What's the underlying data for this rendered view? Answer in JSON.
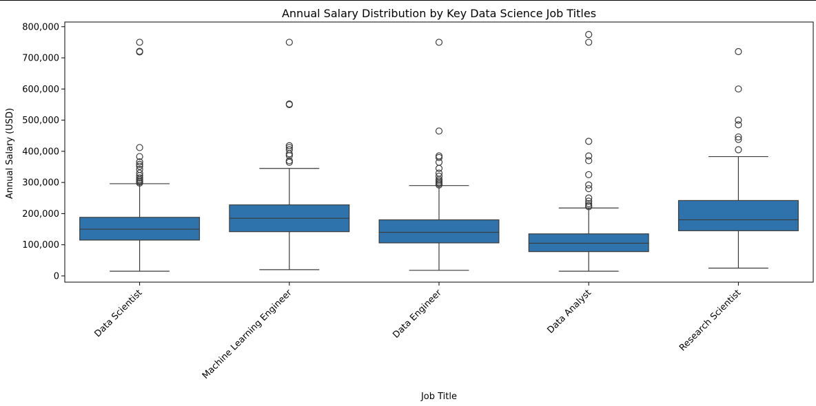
{
  "chart_data": {
    "type": "box",
    "title": "Annual Salary Distribution by Key Data Science Job Titles",
    "xlabel": "Job Title",
    "ylabel": "Annual Salary (USD)",
    "ylim": [
      -20000,
      815000
    ],
    "yticks": [
      0,
      100000,
      200000,
      300000,
      400000,
      500000,
      600000,
      700000,
      800000
    ],
    "ytick_labels": [
      "0",
      "100,000",
      "200,000",
      "300,000",
      "400,000",
      "500,000",
      "600,000",
      "700,000",
      "800,000"
    ],
    "grid": false,
    "box_color": "#2e73ab",
    "line_color": "#3a3a3a",
    "categories": [
      "Data Scientist",
      "Machine Learning Engineer",
      "Data Engineer",
      "Data Analyst",
      "Research Scientist"
    ],
    "boxes": [
      {
        "whisker_low": 15000,
        "q1": 115000,
        "median": 150000,
        "q3": 188000,
        "whisker_high": 296000,
        "outliers": [
          298000,
          302000,
          306000,
          310000,
          315000,
          322000,
          330000,
          342000,
          352000,
          358000,
          366000,
          383000,
          412000,
          719000,
          721000,
          750000
        ]
      },
      {
        "whisker_low": 20000,
        "q1": 142000,
        "median": 185000,
        "q3": 228000,
        "whisker_high": 345000,
        "outliers": [
          365000,
          370000,
          386000,
          392000,
          405000,
          412000,
          418000,
          550000,
          552000,
          750000
        ]
      },
      {
        "whisker_low": 18000,
        "q1": 106000,
        "median": 140000,
        "q3": 180000,
        "whisker_high": 290000,
        "outliers": [
          292000,
          296000,
          300000,
          305000,
          310000,
          320000,
          330000,
          345000,
          365000,
          380000,
          385000,
          465000,
          750000
        ]
      },
      {
        "whisker_low": 15000,
        "q1": 78000,
        "median": 105000,
        "q3": 135000,
        "whisker_high": 218000,
        "outliers": [
          222000,
          226000,
          232000,
          240000,
          250000,
          280000,
          292000,
          325000,
          370000,
          385000,
          432000,
          750000,
          775000
        ]
      },
      {
        "whisker_low": 25000,
        "q1": 145000,
        "median": 180000,
        "q3": 242000,
        "whisker_high": 383000,
        "outliers": [
          405000,
          438000,
          446000,
          485000,
          500000,
          600000,
          720000
        ]
      }
    ]
  }
}
